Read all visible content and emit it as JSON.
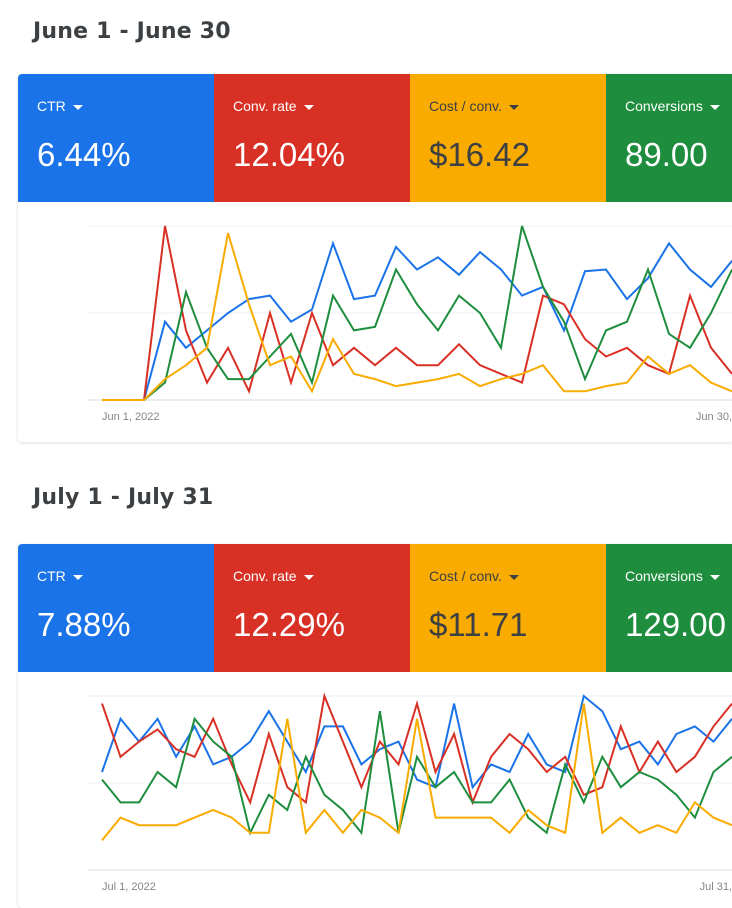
{
  "sections": [
    {
      "title": "June 1 - June 30",
      "metrics": [
        {
          "label": "CTR",
          "value": "6.44%",
          "color": "#1a73e8"
        },
        {
          "label": "Conv. rate",
          "value": "12.04%",
          "color": "#d93025"
        },
        {
          "label": "Cost / conv.",
          "value": "$16.42",
          "color": "#f9ab00"
        },
        {
          "label": "Conversions",
          "value": "89.00",
          "color": "#1e8e3e"
        }
      ],
      "x_start_label": "Jun 1, 2022",
      "x_end_label": "Jun 30,"
    },
    {
      "title": "July 1 - July 31",
      "metrics": [
        {
          "label": "CTR",
          "value": "7.88%",
          "color": "#1a73e8"
        },
        {
          "label": "Conv. rate",
          "value": "12.29%",
          "color": "#d93025"
        },
        {
          "label": "Cost / conv.",
          "value": "$11.71",
          "color": "#f9ab00"
        },
        {
          "label": "Conversions",
          "value": "129.00",
          "color": "#1e8e3e"
        }
      ],
      "x_start_label": "Jul 1, 2022",
      "x_end_label": "Jul 31,"
    }
  ],
  "chart_data": [
    {
      "type": "line",
      "x_start": "Jun 1, 2022",
      "x_end": "Jun 30,",
      "ylim": [
        0,
        100
      ],
      "grid": true,
      "series": [
        {
          "color": "#1a73e8",
          "values": [
            0,
            0,
            0,
            45,
            30,
            40,
            50,
            58,
            60,
            45,
            52,
            90,
            58,
            60,
            88,
            75,
            82,
            72,
            85,
            75,
            60,
            65,
            40,
            74,
            75,
            58,
            70,
            90,
            75,
            65,
            80
          ]
        },
        {
          "color": "#d93025",
          "values": [
            0,
            0,
            0,
            100,
            40,
            10,
            30,
            5,
            50,
            10,
            50,
            20,
            30,
            20,
            30,
            20,
            20,
            32,
            20,
            15,
            10,
            60,
            55,
            35,
            25,
            30,
            20,
            15,
            60,
            30,
            15
          ]
        },
        {
          "color": "#1e8e3e",
          "values": [
            0,
            0,
            0,
            10,
            62,
            30,
            12,
            12,
            25,
            38,
            10,
            60,
            40,
            42,
            75,
            55,
            40,
            60,
            50,
            30,
            100,
            65,
            45,
            12,
            40,
            45,
            75,
            38,
            30,
            50,
            75
          ]
        },
        {
          "color": "#f9ab00",
          "values": [
            0,
            0,
            0,
            12,
            20,
            30,
            96,
            55,
            20,
            25,
            5,
            35,
            15,
            12,
            8,
            10,
            12,
            15,
            8,
            12,
            15,
            20,
            5,
            5,
            8,
            10,
            25,
            15,
            20,
            10,
            5
          ]
        }
      ]
    },
    {
      "type": "line",
      "x_start": "Jul 1, 2022",
      "x_end": "Jul 31,",
      "ylim": [
        0,
        100
      ],
      "grid": true,
      "series": [
        {
          "color": "#1a73e8",
          "values": [
            50,
            85,
            70,
            85,
            60,
            80,
            55,
            60,
            70,
            90,
            70,
            50,
            80,
            80,
            55,
            65,
            70,
            45,
            40,
            95,
            40,
            55,
            50,
            75,
            55,
            50,
            100,
            90,
            65,
            70,
            55,
            75,
            80,
            70,
            85
          ]
        },
        {
          "color": "#d93025",
          "values": [
            95,
            60,
            70,
            78,
            65,
            60,
            85,
            55,
            30,
            75,
            40,
            30,
            100,
            70,
            40,
            70,
            55,
            95,
            50,
            75,
            30,
            60,
            75,
            65,
            50,
            60,
            35,
            40,
            80,
            50,
            70,
            50,
            60,
            80,
            95
          ]
        },
        {
          "color": "#1e8e3e",
          "values": [
            45,
            30,
            30,
            50,
            40,
            85,
            70,
            60,
            10,
            35,
            25,
            60,
            35,
            25,
            10,
            90,
            10,
            60,
            40,
            50,
            30,
            30,
            45,
            20,
            10,
            55,
            30,
            60,
            40,
            50,
            45,
            35,
            20,
            50,
            60
          ]
        },
        {
          "color": "#f9ab00",
          "values": [
            5,
            20,
            15,
            15,
            15,
            20,
            25,
            20,
            10,
            10,
            85,
            10,
            25,
            10,
            25,
            20,
            10,
            85,
            20,
            20,
            20,
            20,
            10,
            25,
            15,
            10,
            95,
            10,
            20,
            10,
            15,
            10,
            30,
            20,
            15
          ]
        }
      ]
    }
  ]
}
